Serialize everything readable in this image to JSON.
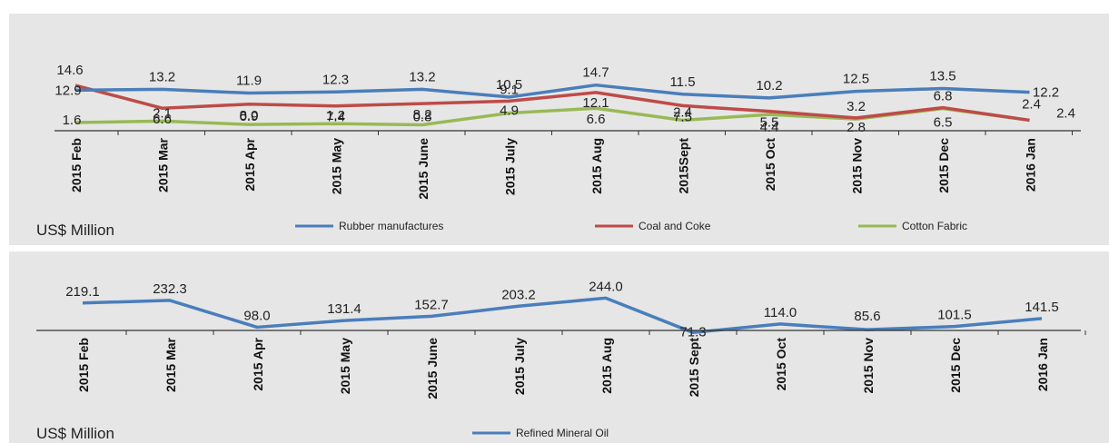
{
  "chart_data": [
    {
      "type": "line",
      "categories": [
        "2015 Feb",
        "2015 Mar",
        "2015 Apr",
        "2015 May",
        "2015 June",
        "2015 July",
        "2015 Aug",
        "2015Sept",
        "2015 Oct",
        "2015 Nov",
        "2015 Dec",
        "2016 Jan"
      ],
      "unit_label": "US$ Million",
      "legend_position": "bottom",
      "grid": false,
      "series": [
        {
          "name": "Rubber manufactures",
          "color": "#4a7ebb",
          "values": [
            12.9,
            13.2,
            11.9,
            12.3,
            13.2,
            10.5,
            14.7,
            11.5,
            10.2,
            12.5,
            13.5,
            12.2
          ]
        },
        {
          "name": "Coal and Coke",
          "color": "#be4b48",
          "values": [
            14.6,
            6.6,
            8.0,
            7.4,
            8.2,
            9.1,
            12.1,
            7.5,
            5.5,
            3.2,
            6.8,
            2.4
          ]
        },
        {
          "name": "Cotton Fabric",
          "color": "#98b954",
          "values": [
            1.6,
            2.1,
            0.9,
            1.2,
            0.8,
            4.9,
            6.6,
            2.4,
            4.4,
            2.8,
            6.5,
            2.4
          ]
        }
      ]
    },
    {
      "type": "line",
      "categories": [
        "2015 Feb",
        "2015 Mar",
        "2015 Apr",
        "2015 May",
        "2015 June",
        "2015 July",
        "2015 Aug",
        "2015 Sept",
        "2015 Oct",
        "2015 Nov",
        "2015 Dec",
        "2016 Jan"
      ],
      "unit_label": "US$ Million",
      "legend_position": "bottom",
      "grid": false,
      "series": [
        {
          "name": "Refined Mineral Oil",
          "color": "#4a7ebb",
          "values": [
            219.1,
            232.3,
            98.0,
            131.4,
            152.7,
            203.2,
            244.0,
            71.3,
            114.0,
            85.6,
            101.5,
            141.5
          ]
        }
      ]
    }
  ]
}
